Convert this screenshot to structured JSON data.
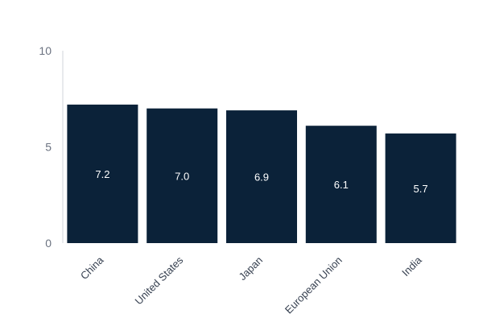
{
  "chart_data": {
    "type": "bar",
    "categories": [
      "China",
      "United States",
      "Japan",
      "European Union",
      "India"
    ],
    "values": [
      7.2,
      7.0,
      6.9,
      6.1,
      5.7
    ],
    "data_labels": [
      "7.2",
      "7.0",
      "6.9",
      "6.1",
      "5.7"
    ],
    "title": "",
    "xlabel": "",
    "ylabel": "",
    "ylim": [
      0,
      10
    ],
    "yticks": [
      0,
      5,
      10
    ],
    "grid": false,
    "legend": "none",
    "bar_color": "#0b2239",
    "axis_color": "#d1d5db",
    "tick_color": "#6b7280",
    "label_color": "#374151",
    "data_label_color": "#ffffff"
  }
}
